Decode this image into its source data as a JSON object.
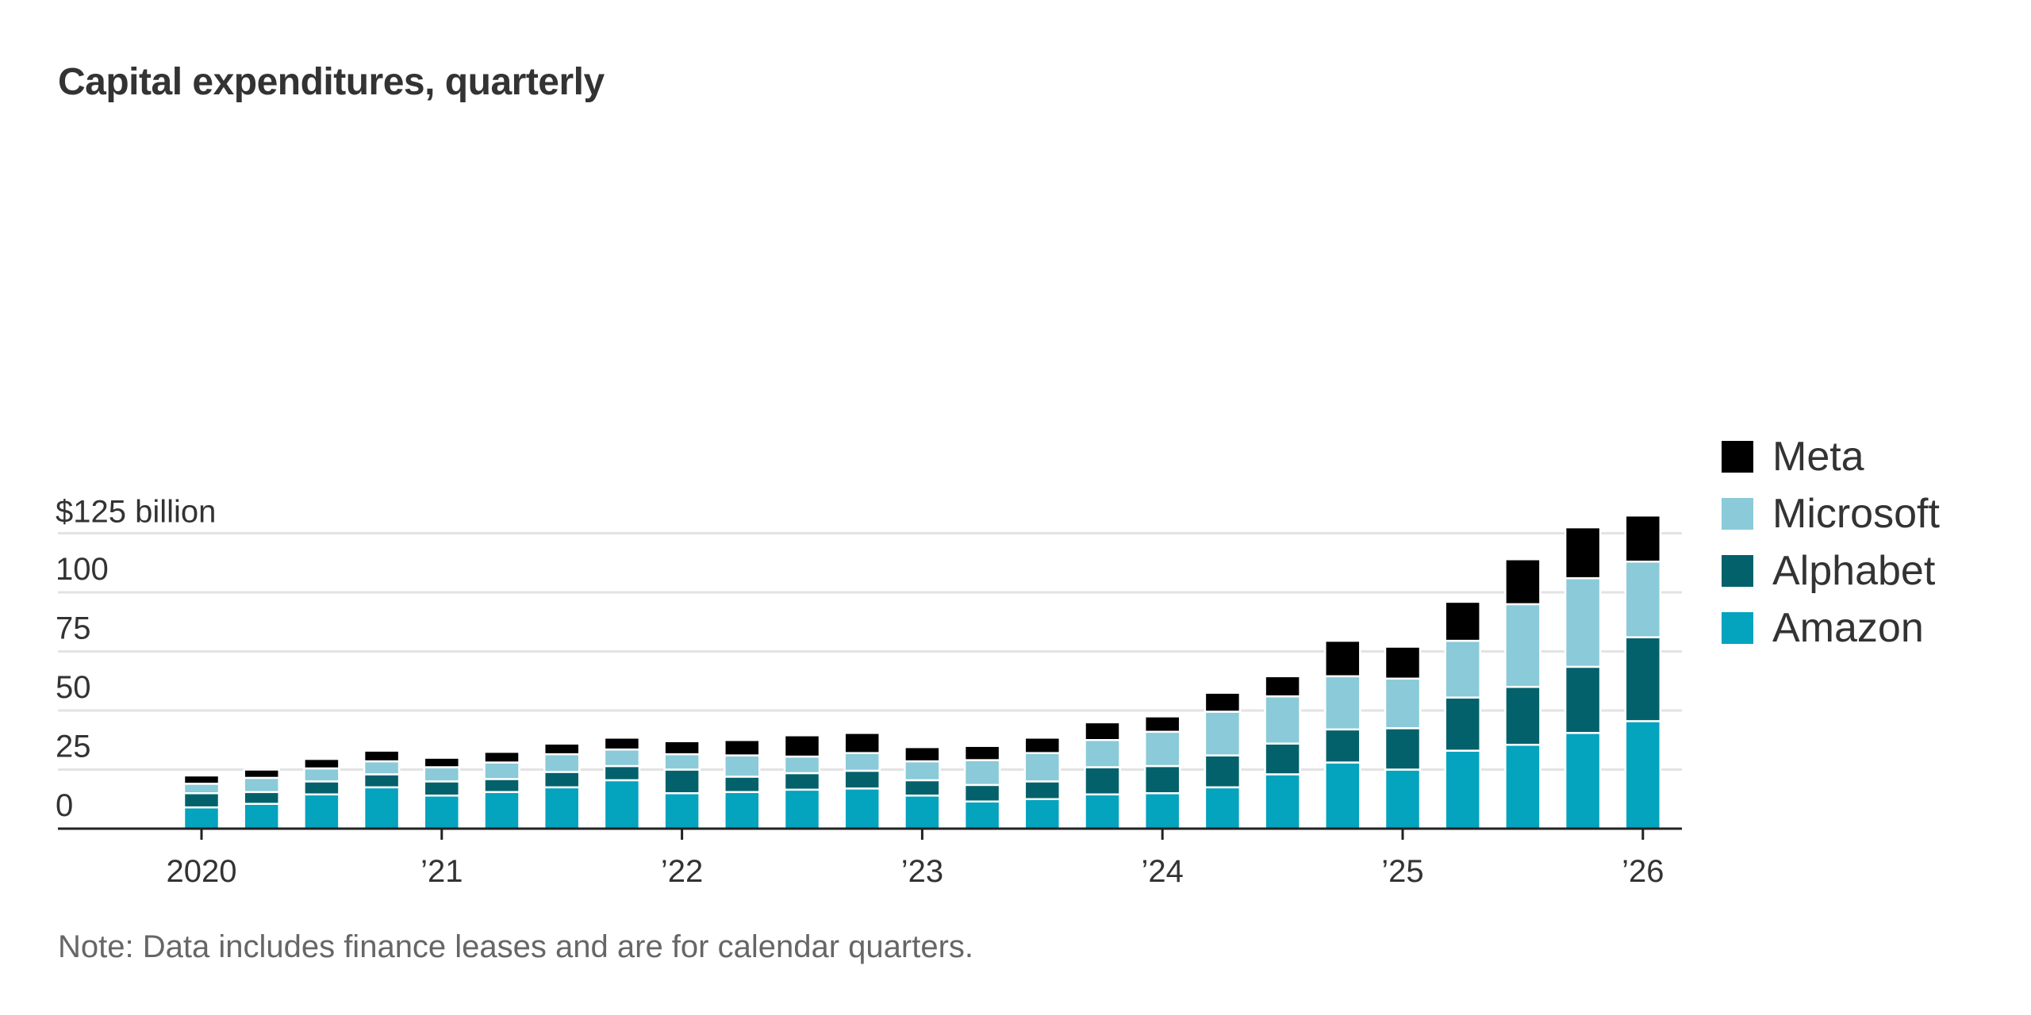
{
  "chart_data": {
    "type": "bar",
    "stacked": true,
    "title": "Capital expenditures, quarterly",
    "y_axis": {
      "ticks": [
        0,
        25,
        50,
        75,
        100,
        125
      ],
      "tick_labels": [
        "0",
        "25",
        "50",
        "75",
        "100",
        "$125 billion"
      ],
      "ylim": [
        0,
        125
      ],
      "grid": true
    },
    "x_axis": {
      "tick_labels": [
        "2020",
        "’21",
        "’22",
        "’23",
        "’24",
        "’25",
        "’26"
      ],
      "tick_label_positions": [
        "2020 Q1",
        "2021 Q1",
        "2022 Q1",
        "2023 Q1",
        "2024 Q1",
        "2025 Q1",
        "2026 Q1"
      ]
    },
    "categories": [
      "2020 Q1",
      "2020 Q2",
      "2020 Q3",
      "2020 Q4",
      "2021 Q1",
      "2021 Q2",
      "2021 Q3",
      "2021 Q4",
      "2022 Q1",
      "2022 Q2",
      "2022 Q3",
      "2022 Q4",
      "2023 Q1",
      "2023 Q2",
      "2023 Q3",
      "2023 Q4",
      "2024 Q1",
      "2024 Q2",
      "2024 Q3",
      "2024 Q4",
      "2025 Q1",
      "2025 Q2",
      "2025 Q3",
      "2025 Q4",
      "2026 Q1"
    ],
    "series": [
      {
        "name": "Amazon",
        "color": "#04a3be",
        "values": [
          9,
          10.5,
          14.5,
          17.5,
          14,
          15.5,
          17.5,
          20.5,
          15,
          15.5,
          16.5,
          17,
          14,
          11.5,
          12.5,
          14.5,
          15,
          17.5,
          23,
          28,
          25,
          33,
          35.5,
          40.5,
          45.5
        ]
      },
      {
        "name": "Alphabet",
        "color": "#03616b",
        "values": [
          6,
          5,
          5.5,
          5.5,
          6,
          5.5,
          6.5,
          6,
          10,
          6.5,
          7,
          7.5,
          6.5,
          7,
          7.5,
          11.5,
          11.5,
          13.5,
          13,
          14,
          17.5,
          22.5,
          24.5,
          28,
          35.5
        ]
      },
      {
        "name": "Microsoft",
        "color": "#8acad9",
        "values": [
          4,
          6,
          5.5,
          5.5,
          6,
          7,
          7.5,
          7,
          6.5,
          9,
          7,
          7.5,
          8,
          10.5,
          12,
          11.5,
          14.5,
          18.5,
          20,
          22.5,
          21,
          24,
          35,
          37.5,
          32
        ]
      },
      {
        "name": "Meta",
        "color": "#000000",
        "values": [
          3.5,
          3.5,
          4,
          4.5,
          4,
          4.5,
          4.5,
          5,
          5.5,
          6.5,
          9,
          8.5,
          6,
          6,
          6.5,
          7.5,
          6.5,
          8,
          8.5,
          15,
          13.5,
          16.5,
          19,
          21.5,
          19.5
        ]
      }
    ],
    "legend_order": [
      "Meta",
      "Microsoft",
      "Alphabet",
      "Amazon"
    ],
    "legend_position": "right",
    "note": "Note: Data includes finance leases and are for calendar quarters."
  }
}
